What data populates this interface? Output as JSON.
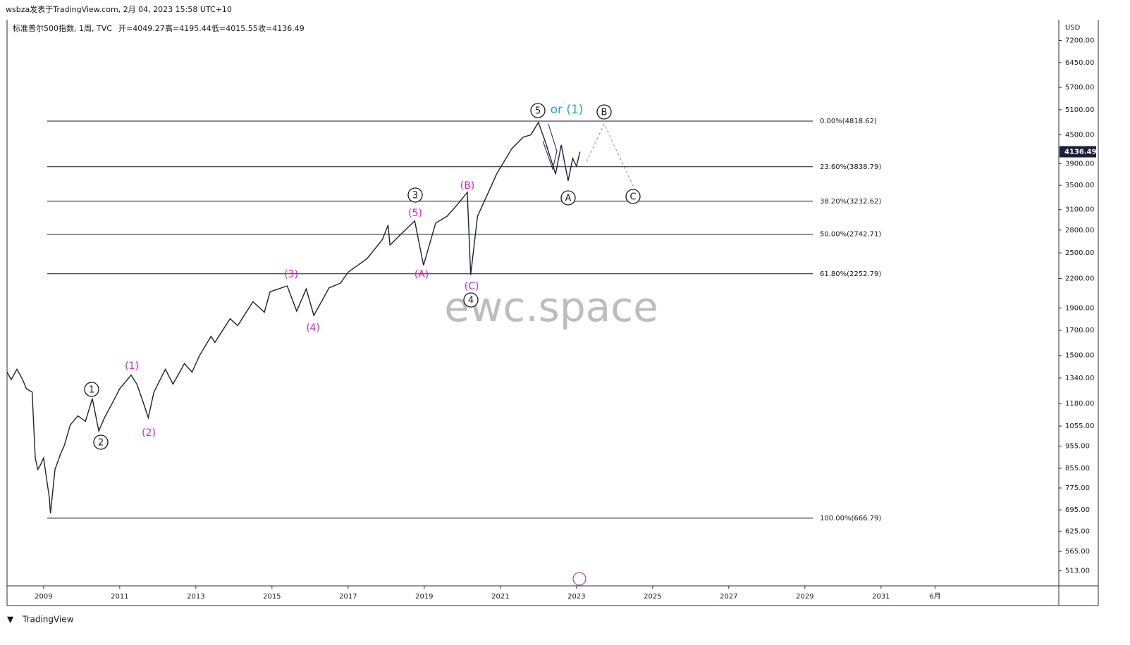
{
  "header": {
    "publisher": "wsbza发表于TradingView.com, 2月 04, 2023 15:58 UTC+10",
    "footer": "TradingView"
  },
  "chart_data": {
    "type": "line",
    "title": "标准普尔500指数, 1周, TVC",
    "ohlc": [
      "开=4049.27",
      "高=4195.44",
      "低=4015.55",
      "收=4136.49"
    ],
    "y_unit": "USD",
    "watermark": "ewc.space",
    "log_scale": true,
    "grid": false,
    "xlim": [
      2008.04,
      2035.67
    ],
    "ylim": [
      476,
      7984
    ],
    "xticks": [
      2009,
      2011,
      2013,
      2015,
      2017,
      2019,
      2021,
      2023,
      2025,
      2027,
      2029,
      2031,
      {
        "value": 2032.42,
        "label": "6月"
      }
    ],
    "yticks": [
      {
        "value": 7200,
        "label": "7200.00"
      },
      {
        "value": 6450,
        "label": "6450.00"
      },
      {
        "value": 5700,
        "label": "5700.00"
      },
      {
        "value": 5100,
        "label": "5100.00"
      },
      {
        "value": 4500,
        "label": "4500.00"
      },
      {
        "value": 3900,
        "label": "3900.00"
      },
      {
        "value": 3500,
        "label": "3500.00"
      },
      {
        "value": 3100,
        "label": "3100.00"
      },
      {
        "value": 2800,
        "label": "2800.00"
      },
      {
        "value": 2500,
        "label": "2500.00"
      },
      {
        "value": 2200,
        "label": "2200.00"
      },
      {
        "value": 1900,
        "label": "1900.00"
      },
      {
        "value": 1700,
        "label": "1700.00"
      },
      {
        "value": 1500,
        "label": "1500.00"
      },
      {
        "value": 1340,
        "label": "1340.00"
      },
      {
        "value": 1180,
        "label": "1180.00"
      },
      {
        "value": 1055,
        "label": "1055.00"
      },
      {
        "value": 955,
        "label": "955.00"
      },
      {
        "value": 855,
        "label": "855.00"
      },
      {
        "value": 775,
        "label": "775.00"
      },
      {
        "value": 695,
        "label": "695.00"
      },
      {
        "value": 625,
        "label": "625.00"
      },
      {
        "value": 565,
        "label": "565.00"
      },
      {
        "value": 513,
        "label": "513.00"
      }
    ],
    "series": [
      {
        "name": "标准普尔500指数",
        "color": "#1c1f3a",
        "x": [
          2008.04,
          2008.15,
          2008.3,
          2008.45,
          2008.55,
          2008.7,
          2008.78,
          2008.85,
          2008.92,
          2009.0,
          2009.15,
          2009.18,
          2009.3,
          2009.45,
          2009.55,
          2009.7,
          2009.9,
          2010.1,
          2010.28,
          2010.45,
          2010.6,
          2010.8,
          2011.0,
          2011.3,
          2011.45,
          2011.6,
          2011.75,
          2011.9,
          2012.2,
          2012.4,
          2012.7,
          2012.9,
          2013.1,
          2013.4,
          2013.5,
          2013.9,
          2014.1,
          2014.5,
          2014.8,
          2014.95,
          2015.4,
          2015.65,
          2015.9,
          2016.1,
          2016.5,
          2016.8,
          2017.0,
          2017.5,
          2017.9,
          2018.05,
          2018.1,
          2018.5,
          2018.75,
          2018.98,
          2019.3,
          2019.6,
          2019.9,
          2020.13,
          2020.22,
          2020.4,
          2020.7,
          2020.9,
          2021.3,
          2021.6,
          2021.8,
          2022.0,
          2022.2,
          2022.45,
          2022.6,
          2022.78,
          2022.9,
          2023.0,
          2023.09
        ],
        "values": [
          1380,
          1330,
          1400,
          1330,
          1270,
          1250,
          900,
          850,
          870,
          900,
          740,
          683,
          850,
          920,
          960,
          1060,
          1110,
          1080,
          1210,
          1030,
          1100,
          1180,
          1270,
          1360,
          1300,
          1200,
          1100,
          1250,
          1400,
          1300,
          1440,
          1380,
          1500,
          1650,
          1600,
          1800,
          1740,
          1960,
          1860,
          2060,
          2120,
          1870,
          2090,
          1830,
          2100,
          2150,
          2270,
          2430,
          2670,
          2870,
          2600,
          2800,
          2930,
          2350,
          2900,
          3000,
          3200,
          3380,
          2240,
          3000,
          3400,
          3700,
          4200,
          4450,
          4500,
          4790,
          4300,
          3700,
          4280,
          3580,
          4000,
          3850,
          4136.49
        ]
      }
    ],
    "fib_levels": [
      {
        "value": 4818.62,
        "label": "0.00%(4818.62)"
      },
      {
        "value": 3838.79,
        "label": "23.60%(3838.79)"
      },
      {
        "value": 3232.62,
        "label": "38.20%(3232.62)"
      },
      {
        "value": 2742.71,
        "label": "50.00%(2742.71)"
      },
      {
        "value": 2252.79,
        "label": "61.80%(2252.79)"
      },
      {
        "value": 666.79,
        "label": "100.00%(666.79)"
      }
    ],
    "annotations": [
      {
        "text": "1",
        "style": "circled"
      },
      {
        "text": "2",
        "style": "circled"
      },
      {
        "text": "3",
        "style": "circled"
      },
      {
        "text": "4",
        "style": "circled"
      },
      {
        "text": "5",
        "style": "circled"
      },
      {
        "text": "(1)",
        "color": "#e91ec8"
      },
      {
        "text": "(2)",
        "color": "#e91ec8"
      },
      {
        "text": "(3)",
        "color": "#e91ec8"
      },
      {
        "text": "(4)",
        "color": "#e91ec8"
      },
      {
        "text": "(5)",
        "color": "#e91ec8"
      },
      {
        "text": "(A)",
        "color": "#e91ec8"
      },
      {
        "text": "(B)",
        "color": "#e91ec8"
      },
      {
        "text": "(C)",
        "color": "#e91ec8"
      },
      {
        "text": "or (1)",
        "color": "#1fa8d0"
      },
      {
        "text": "A",
        "style": "circled"
      },
      {
        "text": "B",
        "style": "circled"
      },
      {
        "text": "C",
        "style": "circled"
      }
    ]
  }
}
